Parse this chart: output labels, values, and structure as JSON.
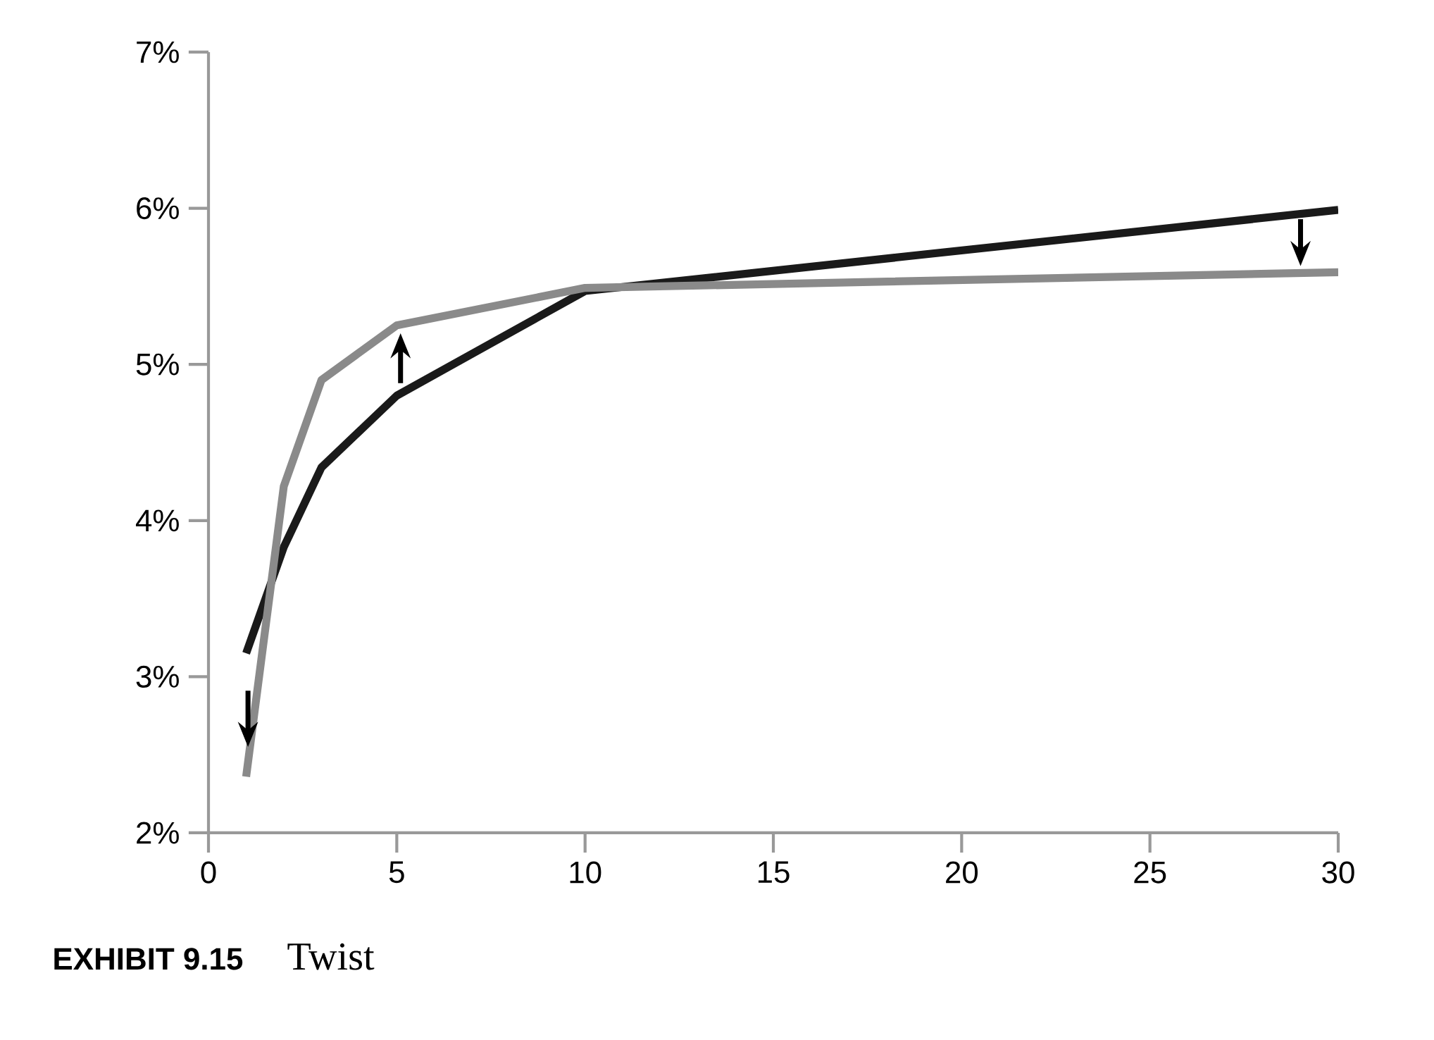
{
  "chart_data": {
    "type": "line",
    "title": "EXHIBIT 9.15",
    "subtitle": "Twist",
    "x": [
      1,
      2,
      3,
      5,
      10,
      30
    ],
    "series": [
      {
        "color": "#1a1a1a",
        "values": [
          3.15,
          3.83,
          4.34,
          4.8,
          5.47,
          5.99
        ]
      },
      {
        "color": "#8a8a8a",
        "values": [
          2.36,
          4.22,
          4.9,
          5.25,
          5.49,
          5.59
        ]
      }
    ],
    "xlim": [
      0,
      30
    ],
    "xticks": [
      0,
      5,
      10,
      15,
      20,
      25,
      30
    ],
    "ylim": [
      2,
      7
    ],
    "yticks": [
      {
        "value": 2,
        "label": "2%"
      },
      {
        "value": 3,
        "label": "3%"
      },
      {
        "value": 4,
        "label": "4%"
      },
      {
        "value": 5,
        "label": "5%"
      },
      {
        "value": 6,
        "label": "6%"
      },
      {
        "value": 7,
        "label": "7%"
      }
    ],
    "grid": false,
    "marker": "none",
    "line_style": "solid"
  }
}
